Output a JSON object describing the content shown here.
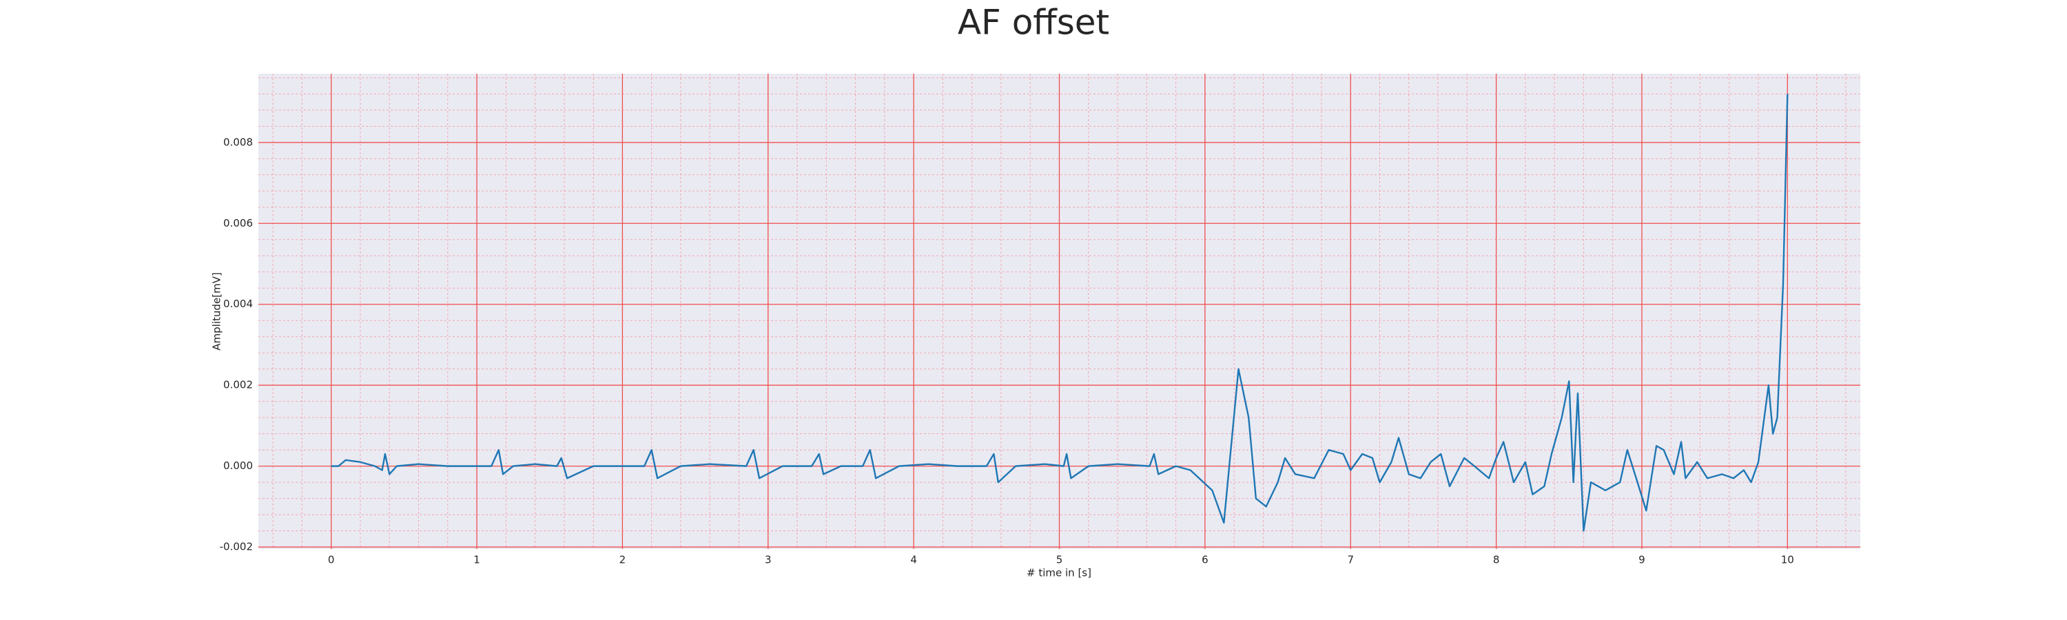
{
  "chart_data": {
    "type": "line",
    "title": "AF offset",
    "x_label": "# time in [s]",
    "y_label": "Amplitude[mV]",
    "xlim": [
      -0.5,
      10.5
    ],
    "xticks": [
      0,
      1,
      2,
      3,
      4,
      5,
      6,
      7,
      8,
      9,
      10
    ],
    "ylim": [
      -0.00205,
      0.0097
    ],
    "yticks": [
      -0.002,
      {
        "value": 0,
        "label": "0.000"
      },
      0.002,
      0.004,
      0.006,
      0.008
    ],
    "grid": true,
    "minor_grid": true,
    "series": [
      {
        "name": "AF offset",
        "color": "#1f77b4",
        "x": [
          0,
          0.05,
          0.1,
          0.2,
          0.3,
          0.35,
          0.37,
          0.4,
          0.45,
          0.6,
          0.8,
          1.0,
          1.1,
          1.15,
          1.18,
          1.25,
          1.4,
          1.55,
          1.58,
          1.62,
          1.8,
          2.0,
          2.15,
          2.2,
          2.24,
          2.4,
          2.6,
          2.85,
          2.9,
          2.94,
          3.1,
          3.3,
          3.35,
          3.38,
          3.5,
          3.65,
          3.7,
          3.74,
          3.9,
          4.1,
          4.3,
          4.5,
          4.55,
          4.58,
          4.7,
          4.9,
          5.03,
          5.05,
          5.08,
          5.2,
          5.4,
          5.62,
          5.65,
          5.68,
          5.8,
          5.9,
          6.05,
          6.13,
          6.18,
          6.23,
          6.3,
          6.35,
          6.42,
          6.5,
          6.55,
          6.62,
          6.75,
          6.85,
          6.95,
          7.0,
          7.08,
          7.15,
          7.2,
          7.28,
          7.33,
          7.4,
          7.48,
          7.55,
          7.62,
          7.68,
          7.78,
          7.85,
          7.95,
          8.0,
          8.05,
          8.12,
          8.2,
          8.25,
          8.33,
          8.38,
          8.45,
          8.5,
          8.53,
          8.56,
          8.6,
          8.65,
          8.75,
          8.85,
          8.9,
          8.97,
          9.03,
          9.1,
          9.15,
          9.22,
          9.27,
          9.3,
          9.38,
          9.45,
          9.55,
          9.63,
          9.7,
          9.75,
          9.8,
          9.87,
          9.9,
          9.93,
          9.97,
          10.0
        ],
        "values": [
          0,
          0,
          0.00015,
          0.0001,
          0,
          -0.0001,
          0.0003,
          -0.0002,
          0,
          5e-05,
          0,
          0,
          0,
          0.0004,
          -0.0002,
          0,
          5e-05,
          0,
          0.0002,
          -0.0003,
          0,
          0,
          0,
          0.0004,
          -0.0003,
          0,
          5e-05,
          0,
          0.0004,
          -0.0003,
          0,
          0,
          0.0003,
          -0.0002,
          0,
          0,
          0.0004,
          -0.0003,
          0,
          5e-05,
          0,
          0,
          0.0003,
          -0.0004,
          0,
          5e-05,
          0,
          0.0003,
          -0.0003,
          0,
          5e-05,
          0,
          0.0003,
          -0.0002,
          0,
          -0.0001,
          -0.0006,
          -0.0014,
          0.0005,
          0.0024,
          0.0012,
          -0.0008,
          -0.001,
          -0.0004,
          0.0002,
          -0.0002,
          -0.0003,
          0.0004,
          0.0003,
          -0.0001,
          0.0003,
          0.0002,
          -0.0004,
          0.0001,
          0.0007,
          -0.0002,
          -0.0003,
          0.0001,
          0.0003,
          -0.0005,
          0.0002,
          0,
          -0.0003,
          0.0002,
          0.0006,
          -0.0004,
          0.0001,
          -0.0007,
          -0.0005,
          0.0003,
          0.0012,
          0.0021,
          -0.0004,
          0.0018,
          -0.0016,
          -0.0004,
          -0.0006,
          -0.0004,
          0.0004,
          -0.0004,
          -0.0011,
          0.0005,
          0.0004,
          -0.0002,
          0.0006,
          -0.0003,
          0.0001,
          -0.0003,
          -0.0002,
          -0.0003,
          -0.0001,
          -0.0004,
          0.0001,
          0.002,
          0.0008,
          0.0012,
          0.0045,
          0.0092
        ]
      }
    ]
  }
}
